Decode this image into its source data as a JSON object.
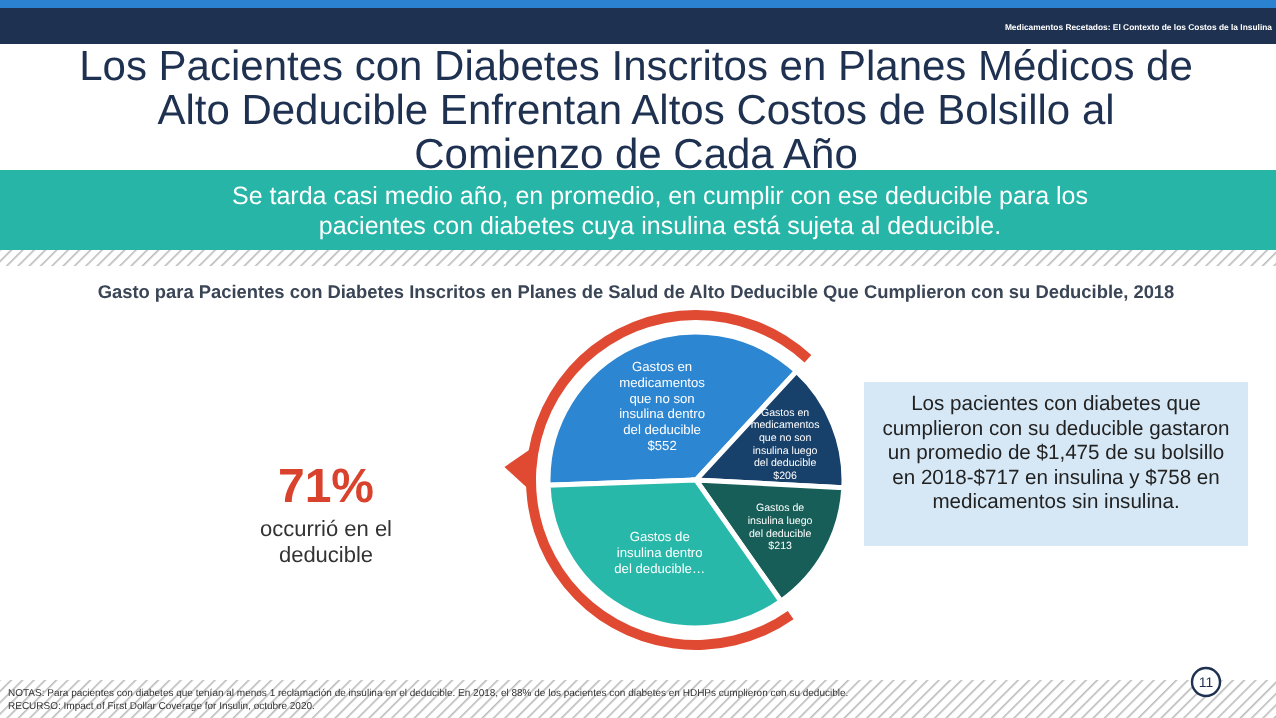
{
  "chart_data": {
    "type": "pie",
    "title": "Los Pacientes con Diabetes Inscritos en Planes Médicos de Alto Deducible Enfrentan Altos Costos de Bolsillo al Comienzo de Cada Año",
    "subtitle": "Se tarda casi medio año, en promedio, en cumplir con ese deducible para los pacientes con diabetes cuya insulina está sujeta al deducible.",
    "categories": [
      "Gastos en medicamentos que no son insulina dentro del deducible",
      "Gastos en medicamentos que no son insulina luego del deducible",
      "Gastos de insulina luego del deducible",
      "Gastos de insulina dentro del deducible…"
    ],
    "values": [
      552,
      206,
      213,
      504
    ],
    "value_labels": [
      "$552",
      "$206",
      "$213",
      null
    ],
    "colors": [
      "#2d86d1",
      "#17406a",
      "#175e58",
      "#27b8aa"
    ],
    "annotations": [
      "Medicamentos Recetados: El Contexto de los Costos de la Insulina",
      "Gasto para Pacientes con Diabetes Inscritos en Planes de Salud de Alto Deducible  Que Cumplieron con su Deducible, 2018",
      "71%",
      "occurrió en el deducible",
      "Los pacientes con diabetes que cumplieron con su deducible gastaron un promedio de $1,475 de su bolsillo en 2018-$717 en insulina y $758 en medicamentos sin insulina.",
      "NOTAS: Para pacientes con diabetes que tenían al menos 1 reclamación de insulina en el deducible. En 2018, el 88% de los pacientes con diabetes en HDHPs cumplieron con su deducible.",
      "RECURSO: Impact of First Dollar Coverage for Insulin, octubre 2020.",
      "11"
    ]
  }
}
